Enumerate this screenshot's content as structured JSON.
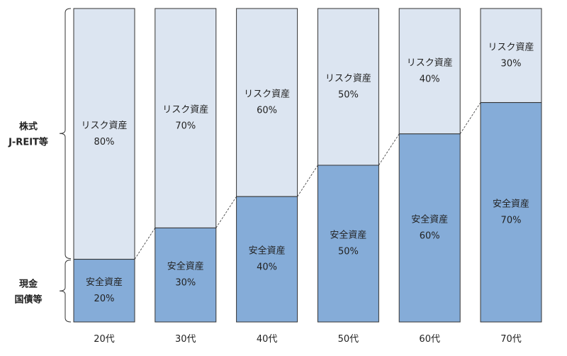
{
  "chart_data": {
    "type": "bar",
    "stacked": true,
    "categories": [
      "20代",
      "30代",
      "40代",
      "50代",
      "60代",
      "70代"
    ],
    "series": [
      {
        "name": "安全資産",
        "values": [
          20,
          30,
          40,
          50,
          60,
          70
        ],
        "color": "#85acd8"
      },
      {
        "name": "リスク資産",
        "values": [
          80,
          70,
          60,
          50,
          40,
          30
        ],
        "color": "#dce5f1"
      }
    ],
    "ylim": [
      0,
      100
    ],
    "percent_suffix": "%",
    "side_labels": [
      {
        "lines": [
          "株式",
          "J-REIT等"
        ],
        "refers_to": "リスク資産"
      },
      {
        "lines": [
          "現金",
          "国債等"
        ],
        "refers_to": "安全資産"
      }
    ]
  }
}
